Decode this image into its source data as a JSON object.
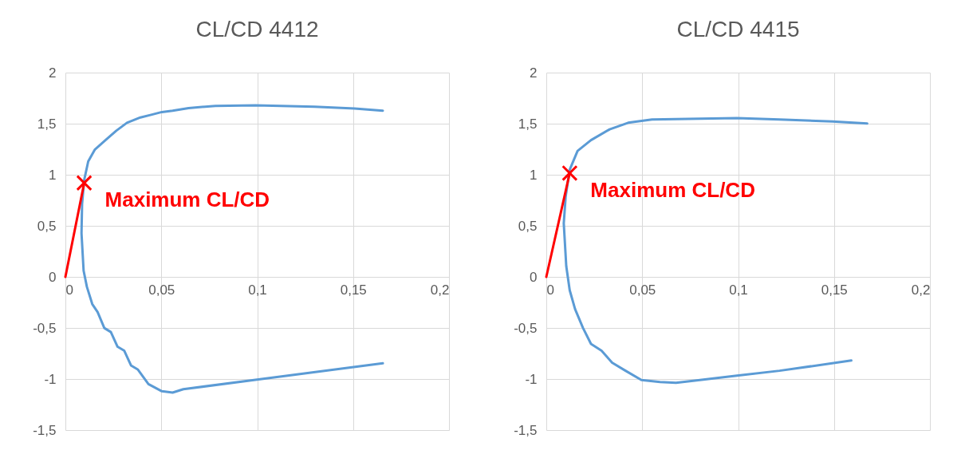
{
  "chart_data": [
    {
      "type": "line",
      "title": "CL/CD 4412",
      "xlim": [
        0,
        0.2
      ],
      "ylim": [
        -1.5,
        2
      ],
      "grid": true,
      "xticks": [
        0,
        {
          "value": 0.05,
          "label": "0,05"
        },
        {
          "value": 0.1,
          "label": "0,1"
        },
        {
          "value": 0.15,
          "label": "0,15"
        },
        {
          "value": 0.2,
          "label": "0,2"
        }
      ],
      "yticks": [
        {
          "value": -1.5,
          "label": "-1,5"
        },
        -1,
        {
          "value": -0.5,
          "label": "-0,5"
        },
        0,
        {
          "value": 0.5,
          "label": "0,5"
        },
        1,
        {
          "value": 1.5,
          "label": "1,5"
        },
        2
      ],
      "series": [
        {
          "type": "line",
          "color": "#5b9bd5",
          "x": [
            0.1655,
            0.0999,
            0.0615,
            0.0559,
            0.0503,
            0.0433,
            0.0377,
            0.0342,
            0.0307,
            0.0272,
            0.0237,
            0.0203,
            0.0168,
            0.014,
            0.0112,
            0.0095,
            0.0084,
            0.0087,
            0.0098,
            0.0119,
            0.0154,
            0.0209,
            0.0265,
            0.0321,
            0.0391,
            0.0447,
            0.0503,
            0.0559,
            0.0642,
            0.0782,
            0.0992,
            0.1299,
            0.1508,
            0.1655
          ],
          "values": [
            -0.846,
            -1.005,
            -1.1,
            -1.133,
            -1.12,
            -1.05,
            -0.906,
            -0.867,
            -0.723,
            -0.684,
            -0.54,
            -0.501,
            -0.345,
            -0.266,
            -0.097,
            0.06,
            0.426,
            0.713,
            0.948,
            1.131,
            1.248,
            1.339,
            1.431,
            1.509,
            1.561,
            1.587,
            1.614,
            1.627,
            1.653,
            1.674,
            1.679,
            1.666,
            1.648,
            1.627
          ]
        },
        {
          "type": "line",
          "color": "#ff0000",
          "x": [
            0,
            0.0098
          ],
          "values": [
            0,
            0.92
          ]
        },
        {
          "type": "scatter",
          "color": "#ff0000",
          "marker": "cross",
          "x": [
            0.0098
          ],
          "values": [
            0.92
          ]
        }
      ],
      "annotations": [
        {
          "text": "Maximum CL/CD",
          "x": 0.0098,
          "y": 0.92
        }
      ]
    },
    {
      "type": "line",
      "title": "CL/CD 4415",
      "xlim": [
        0,
        0.2
      ],
      "ylim": [
        -1.5,
        2
      ],
      "grid": true,
      "xticks": [
        0,
        {
          "value": 0.05,
          "label": "0,05"
        },
        {
          "value": 0.1,
          "label": "0,1"
        },
        {
          "value": 0.15,
          "label": "0,15"
        },
        {
          "value": 0.2,
          "label": "0,2"
        }
      ],
      "yticks": [
        {
          "value": -1.5,
          "label": "-1,5"
        },
        -1,
        {
          "value": -0.5,
          "label": "-0,5"
        },
        0,
        {
          "value": 0.5,
          "label": "0,5"
        },
        1,
        {
          "value": 1.5,
          "label": "1,5"
        },
        2
      ],
      "series": [
        {
          "type": "line",
          "color": "#5b9bd5",
          "x": [
            0.159,
            0.1216,
            0.0994,
            0.0801,
            0.0676,
            0.0593,
            0.0496,
            0.0413,
            0.0343,
            0.0288,
            0.0233,
            0.0191,
            0.015,
            0.0122,
            0.0104,
            0.0091,
            0.0101,
            0.0122,
            0.0163,
            0.0233,
            0.033,
            0.0427,
            0.0551,
            0.0801,
            0.0994,
            0.1216,
            0.1493,
            0.1673
          ],
          "values": [
            -0.819,
            -0.919,
            -0.966,
            -1.01,
            -1.037,
            -1.029,
            -1.01,
            -0.919,
            -0.84,
            -0.722,
            -0.656,
            -0.499,
            -0.315,
            -0.131,
            0.105,
            0.525,
            0.787,
            1.05,
            1.234,
            1.339,
            1.444,
            1.509,
            1.541,
            1.549,
            1.554,
            1.541,
            1.522,
            1.501
          ]
        },
        {
          "type": "line",
          "color": "#ff0000",
          "x": [
            0,
            0.0122
          ],
          "values": [
            0,
            1.016
          ]
        },
        {
          "type": "scatter",
          "color": "#ff0000",
          "marker": "cross",
          "x": [
            0.0122
          ],
          "values": [
            1.016
          ]
        }
      ],
      "annotations": [
        {
          "text": "Maximum CL/CD",
          "x": 0.0122,
          "y": 1.016
        }
      ]
    }
  ]
}
